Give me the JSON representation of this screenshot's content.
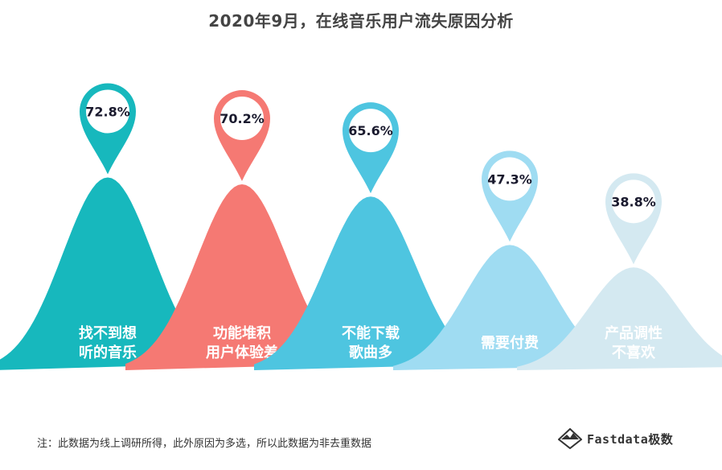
{
  "title": "2020年9月，在线音乐用户流失原因分析",
  "note": "注：此数据为线上调研所得，此外原因为多选，所以此数据为非去重数据",
  "brand": {
    "name": "Fastdata极数",
    "icon": "mountain-logo-icon"
  },
  "chart_data": {
    "type": "bar",
    "categories": [
      "找不到想听的音乐",
      "功能堆积用户体验差",
      "不能下载歌曲多",
      "需要付费",
      "产品调性不喜欢"
    ],
    "category_lines": [
      [
        "找不到想",
        "听的音乐"
      ],
      [
        "功能堆积",
        "用户体验差"
      ],
      [
        "不能下载",
        "歌曲多"
      ],
      [
        "需要付费"
      ],
      [
        "产品调性",
        "不喜欢"
      ]
    ],
    "values": [
      72.8,
      70.2,
      65.6,
      47.3,
      38.8
    ],
    "labels": [
      "72.8%",
      "70.2%",
      "65.6%",
      "47.3%",
      "38.8%"
    ],
    "colors": [
      "#17b8bd",
      "#f57973",
      "#4ec5e0",
      "#9fdcf2",
      "#d4e9f1"
    ],
    "ylabel": "",
    "unit": "%"
  }
}
